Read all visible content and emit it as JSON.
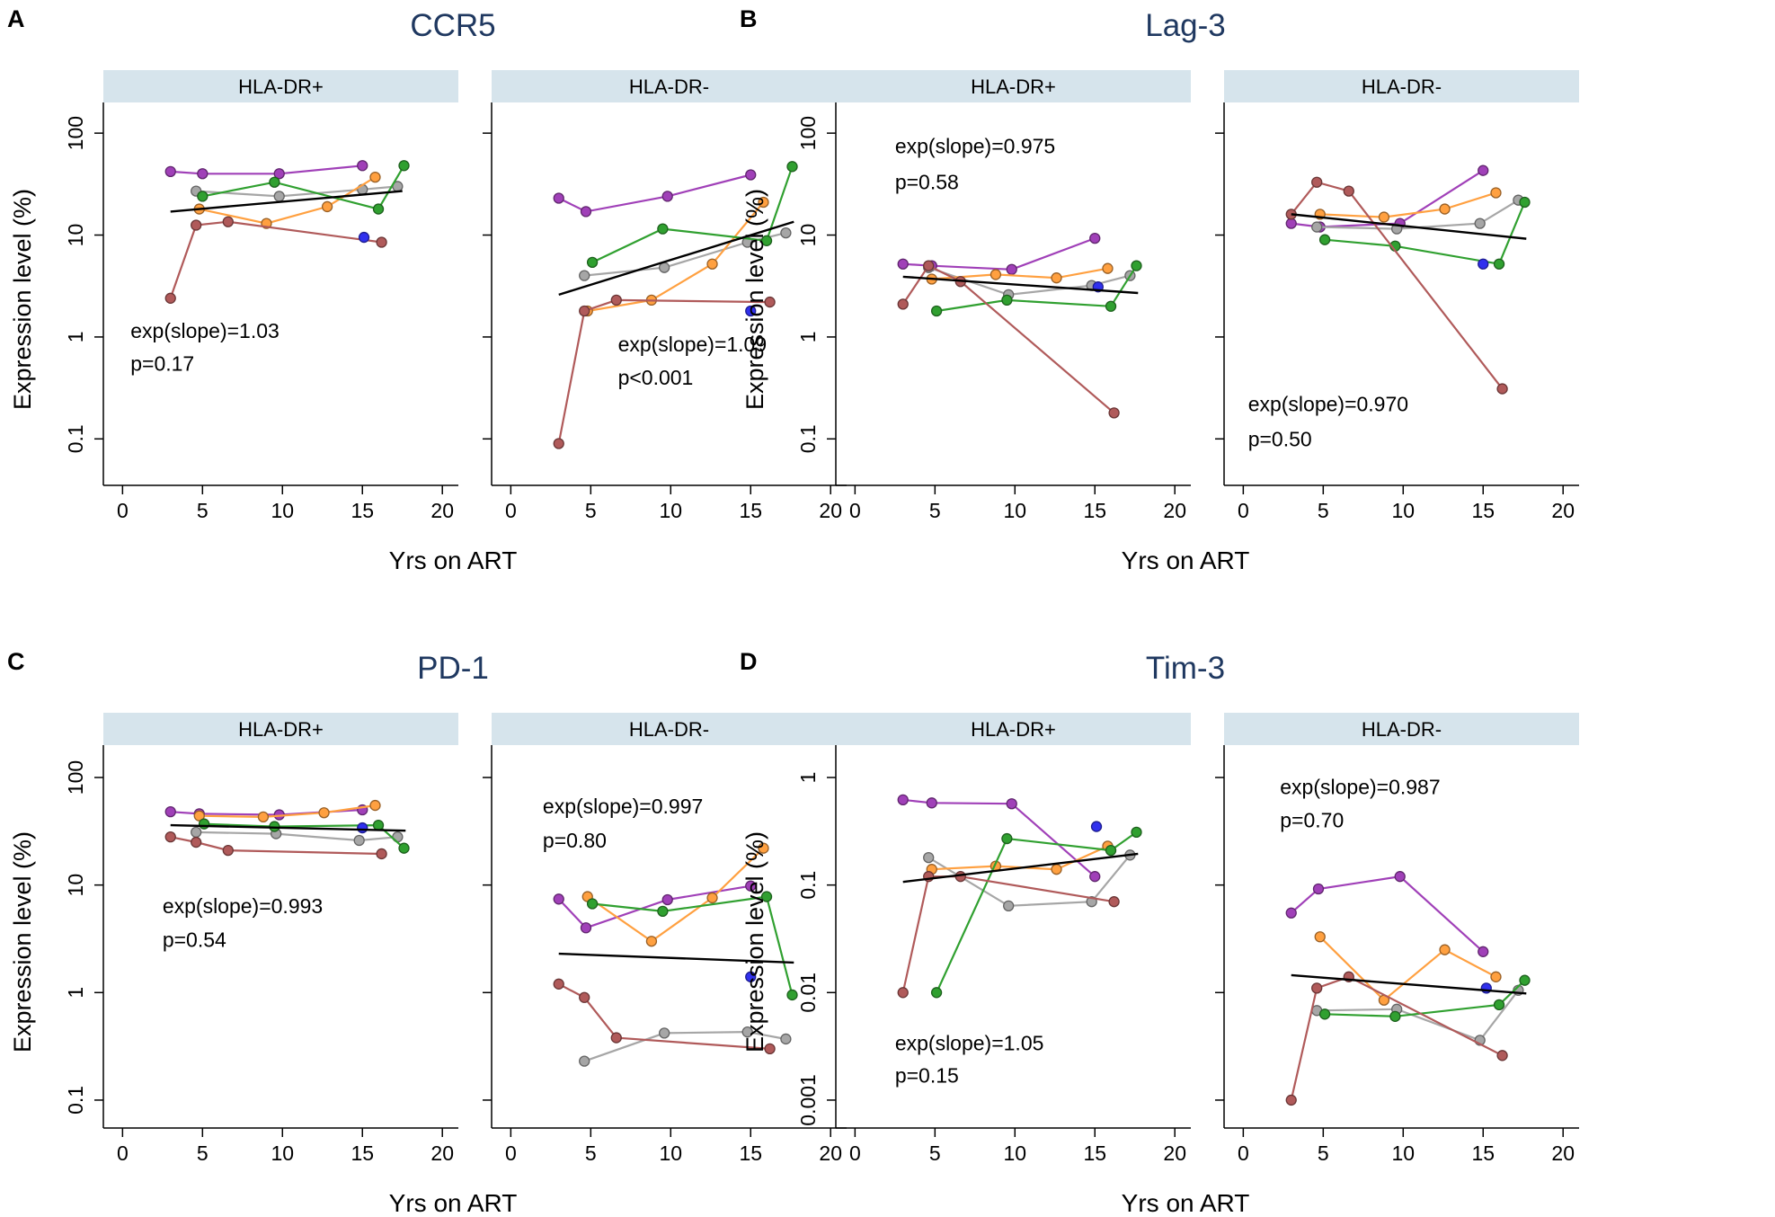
{
  "figure": {
    "shared": {
      "x_label": "Yrs on ART",
      "y_label": "Expression level (%)",
      "x_ticks": [
        0,
        5,
        10,
        15,
        20
      ],
      "xlim": [
        -1.2,
        21
      ],
      "y_scale": "log10"
    },
    "colors": {
      "purple": "#a040b8",
      "gray": "#a6a6a6",
      "orange": "#ffa040",
      "green": "#30a030",
      "brown": "#b05a5a",
      "blue": "#3030ee",
      "fit_line": "#000000",
      "strip_bg": "#d6e4ec",
      "title": "#1f3860",
      "axis": "#000000"
    }
  },
  "chart_data": [
    {
      "type": "line",
      "panel_letter": "A",
      "title": "CCR5",
      "xlabel": "Yrs on ART",
      "ylabel": "Expression level (%)",
      "y_ticks": [
        0.1,
        1,
        10,
        100
      ],
      "y_tick_labels": [
        "0.1",
        "1",
        "10",
        "100"
      ],
      "ylim": [
        0.035,
        200
      ],
      "subplots": [
        {
          "strip": "HLA-DR+",
          "annotation": [
            "exp(slope)=1.03",
            "p=0.17"
          ],
          "annotation_pos": {
            "x": 0.5,
            "y": [
              1.15,
              0.55
            ]
          },
          "fit": {
            "x": [
              3,
              17.5
            ],
            "y": [
              17,
              27
            ]
          },
          "series": [
            {
              "name": "purple",
              "x": [
                3,
                5,
                9.8,
                15
              ],
              "y": [
                42,
                40,
                40,
                48
              ]
            },
            {
              "name": "gray",
              "x": [
                4.6,
                9.8,
                15,
                17.2
              ],
              "y": [
                27,
                24,
                28,
                30
              ]
            },
            {
              "name": "orange",
              "x": [
                4.8,
                9,
                12.8,
                15.8
              ],
              "y": [
                18,
                13,
                19,
                37
              ]
            },
            {
              "name": "green",
              "x": [
                5,
                9.5,
                16,
                17.6
              ],
              "y": [
                24,
                33,
                18,
                48
              ]
            },
            {
              "name": "brown",
              "x": [
                3,
                4.6,
                6.6,
                16.2
              ],
              "y": [
                2.4,
                12.5,
                13.5,
                8.5
              ]
            },
            {
              "name": "blue",
              "x": [
                15.1
              ],
              "y": [
                9.5
              ]
            }
          ]
        },
        {
          "strip": "HLA-DR-",
          "annotation": [
            "exp(slope)=1.09",
            "p<0.001"
          ],
          "annotation_pos": {
            "x": 6.7,
            "y": [
              0.85,
              0.4
            ]
          },
          "fit": {
            "x": [
              3,
              17.7
            ],
            "y": [
              2.6,
              13.5
            ]
          },
          "series": [
            {
              "name": "purple",
              "x": [
                3,
                4.7,
                9.8,
                15
              ],
              "y": [
                23,
                17,
                24,
                39
              ]
            },
            {
              "name": "gray",
              "x": [
                4.6,
                9.6,
                14.8,
                17.2
              ],
              "y": [
                4,
                4.8,
                8.5,
                10.5
              ]
            },
            {
              "name": "orange",
              "x": [
                4.8,
                8.8,
                12.6,
                15.8
              ],
              "y": [
                1.8,
                2.3,
                5.2,
                21
              ]
            },
            {
              "name": "green",
              "x": [
                5.1,
                9.5,
                16,
                17.6
              ],
              "y": [
                5.4,
                11.5,
                8.8,
                47
              ]
            },
            {
              "name": "brown",
              "x": [
                3,
                4.6,
                6.6,
                16.2
              ],
              "y": [
                0.09,
                1.8,
                2.3,
                2.2
              ]
            },
            {
              "name": "blue",
              "x": [
                15
              ],
              "y": [
                1.8
              ]
            }
          ]
        }
      ]
    },
    {
      "type": "line",
      "panel_letter": "B",
      "title": "Lag-3",
      "xlabel": "Yrs on ART",
      "ylabel": "Expression level (%)",
      "y_ticks": [
        0.1,
        1,
        10,
        100
      ],
      "y_tick_labels": [
        "0.1",
        "1",
        "10",
        "100"
      ],
      "ylim": [
        0.035,
        200
      ],
      "subplots": [
        {
          "strip": "HLA-DR+",
          "annotation": [
            "exp(slope)=0.975",
            "p=0.58"
          ],
          "annotation_pos": {
            "x": 2.5,
            "y": [
              75,
              33
            ]
          },
          "fit": {
            "x": [
              3,
              17.7
            ],
            "y": [
              3.9,
              2.7
            ]
          },
          "series": [
            {
              "name": "purple",
              "x": [
                3,
                4.8,
                9.8,
                15
              ],
              "y": [
                5.2,
                5,
                4.6,
                9.3
              ]
            },
            {
              "name": "gray",
              "x": [
                4.6,
                9.6,
                14.8,
                17.2
              ],
              "y": [
                4.8,
                2.6,
                3.2,
                4
              ]
            },
            {
              "name": "orange",
              "x": [
                4.8,
                8.8,
                12.6,
                15.8
              ],
              "y": [
                3.7,
                4.1,
                3.8,
                4.7
              ]
            },
            {
              "name": "green",
              "x": [
                5.1,
                9.5,
                16,
                17.6
              ],
              "y": [
                1.8,
                2.3,
                2,
                5
              ]
            },
            {
              "name": "brown",
              "x": [
                3,
                4.6,
                6.6,
                16.2
              ],
              "y": [
                2.1,
                5,
                3.5,
                0.18
              ]
            },
            {
              "name": "blue",
              "x": [
                15.2
              ],
              "y": [
                3.1
              ]
            }
          ]
        },
        {
          "strip": "HLA-DR-",
          "annotation": [
            "exp(slope)=0.970",
            "p=0.50"
          ],
          "annotation_pos": {
            "x": 0.3,
            "y": [
              0.22,
              0.1
            ]
          },
          "fit": {
            "x": [
              3,
              17.7
            ],
            "y": [
              16,
              9.2
            ]
          },
          "series": [
            {
              "name": "purple",
              "x": [
                3,
                4.8,
                9.8,
                15
              ],
              "y": [
                13,
                12,
                13,
                43
              ]
            },
            {
              "name": "gray",
              "x": [
                4.6,
                9.6,
                14.8,
                17.2
              ],
              "y": [
                12,
                11.5,
                13,
                22
              ]
            },
            {
              "name": "orange",
              "x": [
                4.8,
                8.8,
                12.6,
                15.8
              ],
              "y": [
                16,
                15,
                18,
                26
              ]
            },
            {
              "name": "green",
              "x": [
                5.1,
                9.5,
                16,
                17.6
              ],
              "y": [
                9,
                7.8,
                5.2,
                21
              ]
            },
            {
              "name": "brown",
              "x": [
                3,
                4.6,
                6.6,
                16.2
              ],
              "y": [
                16,
                33,
                27,
                0.31
              ]
            },
            {
              "name": "blue",
              "x": [
                15
              ],
              "y": [
                5.2
              ]
            }
          ]
        }
      ]
    },
    {
      "type": "line",
      "panel_letter": "C",
      "title": "PD-1",
      "xlabel": "Yrs on ART",
      "ylabel": "Expression level (%)",
      "y_ticks": [
        0.1,
        1,
        10,
        100
      ],
      "y_tick_labels": [
        "0.1",
        "1",
        "10",
        "100"
      ],
      "ylim": [
        0.055,
        200
      ],
      "subplots": [
        {
          "strip": "HLA-DR+",
          "annotation": [
            "exp(slope)=0.993",
            "p=0.54"
          ],
          "annotation_pos": {
            "x": 2.5,
            "y": [
              6.4,
              3.1
            ]
          },
          "fit": {
            "x": [
              3,
              17.7
            ],
            "y": [
              36,
              32
            ]
          },
          "series": [
            {
              "name": "purple",
              "x": [
                3,
                4.8,
                9.8,
                15
              ],
              "y": [
                48,
                46,
                45,
                50
              ]
            },
            {
              "name": "gray",
              "x": [
                4.6,
                9.6,
                14.8,
                17.2
              ],
              "y": [
                31,
                30,
                26,
                28
              ]
            },
            {
              "name": "orange",
              "x": [
                4.8,
                8.8,
                12.6,
                15.8
              ],
              "y": [
                44,
                43,
                47,
                55
              ]
            },
            {
              "name": "green",
              "x": [
                5.1,
                9.5,
                16,
                17.6
              ],
              "y": [
                37,
                35,
                36,
                22
              ]
            },
            {
              "name": "brown",
              "x": [
                3,
                4.6,
                6.6,
                16.2
              ],
              "y": [
                28,
                25,
                21,
                19.5
              ]
            },
            {
              "name": "blue",
              "x": [
                15
              ],
              "y": [
                34
              ]
            }
          ]
        },
        {
          "strip": "HLA-DR-",
          "annotation": [
            "exp(slope)=0.997",
            "p=0.80"
          ],
          "annotation_pos": {
            "x": 2.0,
            "y": [
              54,
              26
            ]
          },
          "fit": {
            "x": [
              3,
              17.7
            ],
            "y": [
              2.3,
              1.9
            ]
          },
          "series": [
            {
              "name": "purple",
              "x": [
                3,
                4.7,
                9.8,
                15
              ],
              "y": [
                7.4,
                4,
                7.3,
                9.8
              ]
            },
            {
              "name": "gray",
              "x": [
                4.6,
                9.6,
                14.8,
                17.2
              ],
              "y": [
                0.23,
                0.42,
                0.43,
                0.37
              ]
            },
            {
              "name": "orange",
              "x": [
                4.8,
                8.8,
                12.6,
                15.8
              ],
              "y": [
                7.8,
                3,
                7.6,
                22
              ]
            },
            {
              "name": "green",
              "x": [
                5.1,
                9.5,
                16,
                17.6
              ],
              "y": [
                6.7,
                5.7,
                7.8,
                0.95
              ]
            },
            {
              "name": "brown",
              "x": [
                3,
                4.6,
                6.6,
                16.2
              ],
              "y": [
                1.2,
                0.9,
                0.38,
                0.3
              ]
            },
            {
              "name": "blue",
              "x": [
                15
              ],
              "y": [
                1.4
              ]
            }
          ]
        }
      ]
    },
    {
      "type": "line",
      "panel_letter": "D",
      "title": "Tim-3",
      "xlabel": "Yrs on ART",
      "ylabel": "Expression level (%)",
      "y_ticks": [
        0.001,
        0.01,
        0.1,
        1
      ],
      "y_tick_labels": [
        "0.001",
        "0.01",
        "0.1",
        "1"
      ],
      "ylim": [
        0.00055,
        2
      ],
      "subplots": [
        {
          "strip": "HLA-DR+",
          "annotation": [
            "exp(slope)=1.05",
            "p=0.15"
          ],
          "annotation_pos": {
            "x": 2.5,
            "y": [
              0.0034,
              0.0017
            ]
          },
          "fit": {
            "x": [
              3,
              17.7
            ],
            "y": [
              0.107,
              0.195
            ]
          },
          "series": [
            {
              "name": "purple",
              "x": [
                3,
                4.8,
                9.8,
                15
              ],
              "y": [
                0.62,
                0.58,
                0.57,
                0.12
              ]
            },
            {
              "name": "gray",
              "x": [
                4.6,
                9.6,
                14.8,
                17.2
              ],
              "y": [
                0.18,
                0.064,
                0.07,
                0.19
              ]
            },
            {
              "name": "orange",
              "x": [
                4.8,
                8.8,
                12.6,
                15.8
              ],
              "y": [
                0.14,
                0.15,
                0.14,
                0.23
              ]
            },
            {
              "name": "green",
              "x": [
                5.1,
                9.5,
                16,
                17.6
              ],
              "y": [
                0.01,
                0.27,
                0.21,
                0.31
              ]
            },
            {
              "name": "brown",
              "x": [
                3,
                4.6,
                6.6,
                16.2
              ],
              "y": [
                0.01,
                0.12,
                0.12,
                0.07
              ]
            },
            {
              "name": "blue",
              "x": [
                15.1
              ],
              "y": [
                0.35
              ]
            }
          ]
        },
        {
          "strip": "HLA-DR-",
          "annotation": [
            "exp(slope)=0.987",
            "p=0.70"
          ],
          "annotation_pos": {
            "x": 2.3,
            "y": [
              0.82,
              0.4
            ]
          },
          "fit": {
            "x": [
              3,
              17.7
            ],
            "y": [
              0.0145,
              0.0098
            ]
          },
          "series": [
            {
              "name": "purple",
              "x": [
                3,
                4.7,
                9.8,
                15
              ],
              "y": [
                0.055,
                0.092,
                0.12,
                0.024
              ]
            },
            {
              "name": "gray",
              "x": [
                4.6,
                9.6,
                14.8,
                17.2
              ],
              "y": [
                0.0068,
                0.007,
                0.0036,
                0.0105
              ]
            },
            {
              "name": "orange",
              "x": [
                4.8,
                8.8,
                12.6,
                15.8
              ],
              "y": [
                0.033,
                0.0085,
                0.025,
                0.014
              ]
            },
            {
              "name": "green",
              "x": [
                5.1,
                9.5,
                16,
                17.6
              ],
              "y": [
                0.0063,
                0.006,
                0.0077,
                0.013
              ]
            },
            {
              "name": "brown",
              "x": [
                3,
                4.6,
                6.6,
                16.2
              ],
              "y": [
                0.001,
                0.011,
                0.014,
                0.0026
              ]
            },
            {
              "name": "blue",
              "x": [
                15.2
              ],
              "y": [
                0.011
              ]
            }
          ]
        }
      ]
    }
  ]
}
